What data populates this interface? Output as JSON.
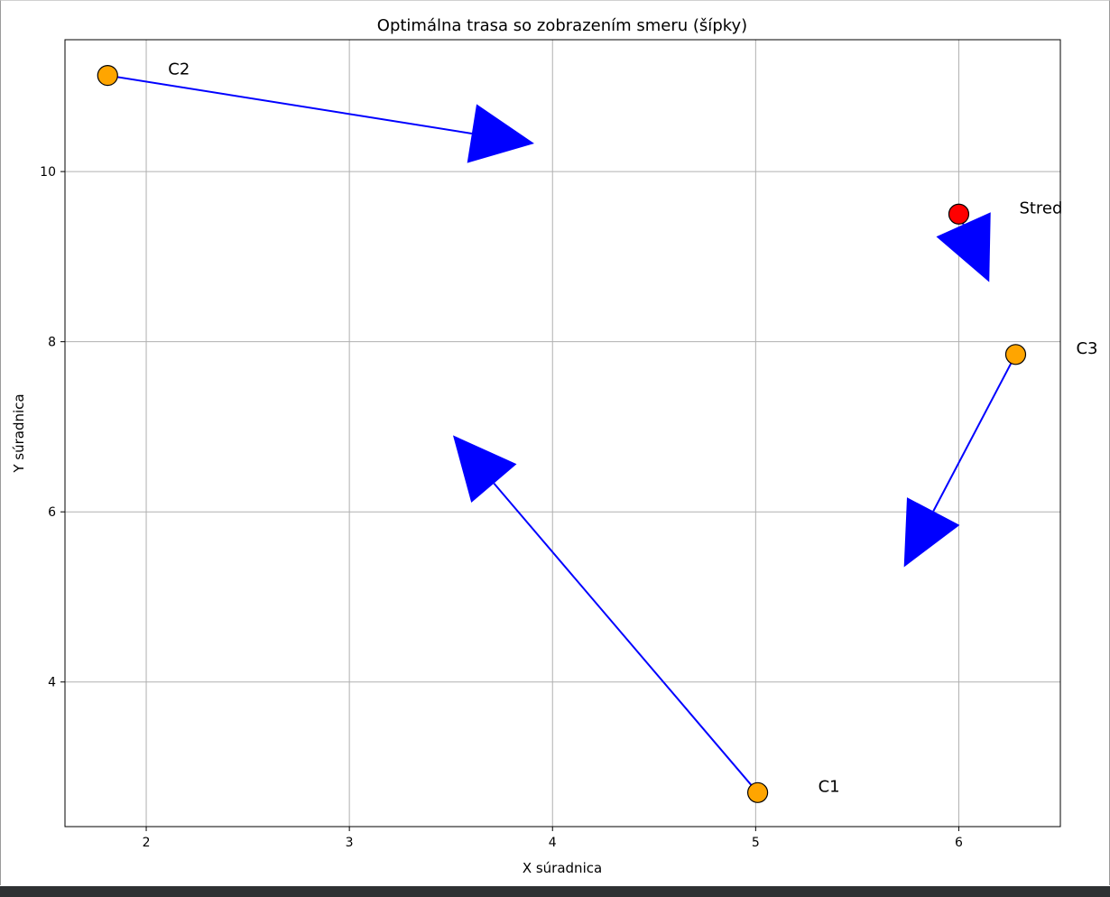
{
  "chart_data": {
    "type": "scatter",
    "title": "Optimálna trasa so zobrazením smeru (šípky)",
    "xlabel": "X súradnica",
    "ylabel": "Y súradnica",
    "xlim": [
      1.6,
      6.5
    ],
    "ylim": [
      2.3,
      11.55
    ],
    "xticks": [
      2,
      3,
      4,
      5,
      6
    ],
    "yticks": [
      4,
      6,
      8,
      10
    ],
    "grid": true,
    "points": [
      {
        "name": "Stred",
        "x": 6.0,
        "y": 9.5,
        "color": "#ff0000"
      },
      {
        "name": "C1",
        "x": 5.01,
        "y": 2.7,
        "color": "#ffa500"
      },
      {
        "name": "C2",
        "x": 1.81,
        "y": 11.13,
        "color": "#ffa500"
      },
      {
        "name": "C3",
        "x": 6.28,
        "y": 7.85,
        "color": "#ffa500"
      }
    ],
    "arrows": [
      {
        "from": "Stred",
        "x": 6.0,
        "y": 9.5,
        "dx": 0.15,
        "dy": -0.8
      },
      {
        "from": "C3",
        "x": 6.28,
        "y": 7.85,
        "dx": -0.55,
        "dy": -2.5
      },
      {
        "from": "C1",
        "x": 5.01,
        "y": 2.7,
        "dx": -1.5,
        "dy": 4.2
      },
      {
        "from": "C2",
        "x": 1.81,
        "y": 11.13,
        "dx": 2.1,
        "dy": -0.8
      }
    ],
    "arrow_color": "#0000ff"
  }
}
